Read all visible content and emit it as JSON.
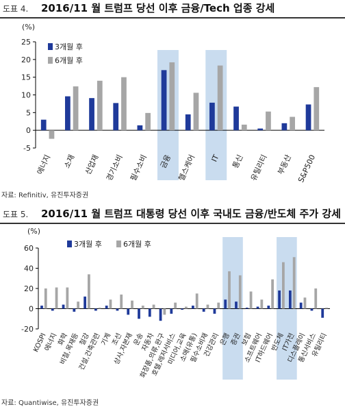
{
  "figures": [
    {
      "label": "도표 4.",
      "title": "2016/11 월 트럼프 당선 이후 금융/Tech 업종 강세",
      "source": "자료: Refinitiv, 유진투자증권"
    },
    {
      "label": "도표 5.",
      "title": "2016/11 월 트럼프 대통령 당선 이후 국내도 금융/반도체 주가 강세",
      "source": "자료: Quantiwise, 유진투자증권"
    }
  ],
  "colors": {
    "series1": "#1f3a9a",
    "series2": "#a6a6a6",
    "highlight": "#c9dcef"
  },
  "chart_data": [
    {
      "type": "bar",
      "unit": "(%)",
      "ylim": [
        -5,
        25
      ],
      "yticks": [
        -5,
        0,
        5,
        10,
        15,
        20,
        25
      ],
      "grid": false,
      "legend": "top-left",
      "categories": [
        "에너지",
        "소재",
        "산업재",
        "경기소비",
        "필수소비",
        "금융",
        "헬스케어",
        "IT",
        "통신",
        "유틸리티",
        "부동산",
        "S&P500"
      ],
      "highlight": [
        "금융",
        "IT"
      ],
      "series": [
        {
          "name": "3개월 후",
          "values": [
            3.0,
            9.6,
            9.1,
            7.7,
            1.4,
            17.0,
            4.5,
            7.8,
            6.7,
            0.5,
            2.0,
            7.3
          ]
        },
        {
          "name": "6개월 후",
          "values": [
            -2.4,
            12.4,
            14.0,
            15.0,
            4.9,
            19.2,
            10.6,
            18.3,
            1.6,
            5.3,
            3.8,
            12.2
          ]
        }
      ]
    },
    {
      "type": "bar",
      "unit": "(%)",
      "ylim": [
        -20,
        60
      ],
      "yticks": [
        -20,
        0,
        20,
        40,
        60
      ],
      "grid": false,
      "legend": "top-left",
      "categories": [
        "KOSPI",
        "에너지",
        "화학",
        "비철,목재등",
        "철강",
        "건설,건축관련",
        "기계",
        "조선",
        "상사,자본재",
        "운송",
        "자동차",
        "화장품,의류,완구",
        "호텔,레저서비스",
        "미디어,교육",
        "소매(유통)",
        "필수소비재",
        "건강관리",
        "은행",
        "증권",
        "보험",
        "소프트웨어",
        "IT하드웨어",
        "반도체",
        "IT가전",
        "디스플레이",
        "통신서비스",
        "유틸리티"
      ],
      "highlight": [
        "은행",
        "증권",
        "반도체",
        "IT가전"
      ],
      "series": [
        {
          "name": "3개월 후",
          "values": [
            3,
            -2,
            4,
            -3,
            12,
            -2,
            3,
            -2,
            -6,
            -10,
            -8,
            -12,
            -5,
            -1,
            3,
            -3,
            -5,
            9,
            7,
            1,
            2,
            3,
            18,
            18,
            6,
            -2,
            -9
          ]
        },
        {
          "name": "6개월 후",
          "values": [
            20,
            21,
            21,
            7,
            34,
            1,
            9,
            14,
            8,
            3,
            4,
            -6,
            6,
            2,
            15,
            4,
            6,
            37,
            33,
            17,
            9,
            29,
            46,
            51,
            11,
            20,
            1
          ]
        }
      ]
    }
  ]
}
